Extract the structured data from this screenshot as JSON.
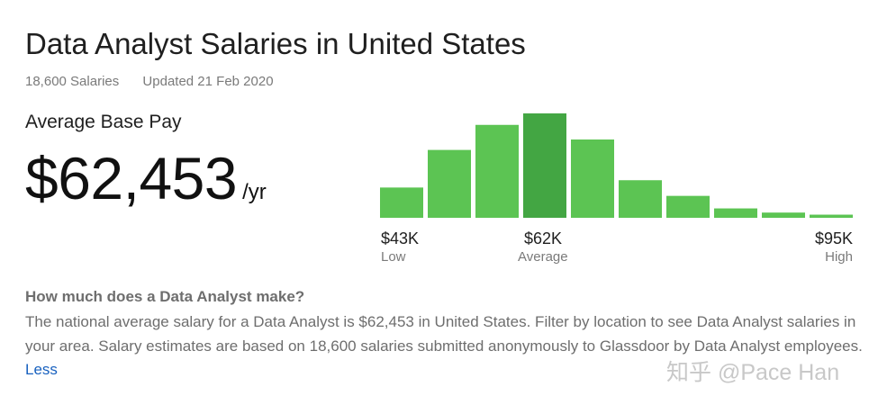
{
  "header": {
    "title": "Data Analyst Salaries in United States",
    "salary_count": "18,600 Salaries",
    "updated": "Updated 21 Feb 2020"
  },
  "pay": {
    "label": "Average Base Pay",
    "amount": "$62,453",
    "unit": "/yr"
  },
  "chart_data": {
    "type": "bar",
    "bin_heights_relative": [
      0.29,
      0.65,
      0.89,
      1.0,
      0.75,
      0.36,
      0.21,
      0.09,
      0.05,
      0.03
    ],
    "highlight_index": 3,
    "colors": {
      "bar": "#5cc453",
      "highlight": "#43a643"
    },
    "grid": false,
    "axis_markers": [
      {
        "value": "$43K",
        "label": "Low"
      },
      {
        "value": "$62K",
        "label": "Average"
      },
      {
        "value": "$95K",
        "label": "High"
      }
    ]
  },
  "description": {
    "question": "How much does a Data Analyst make?",
    "text": "The national average salary for a Data Analyst is $62,453 in United States. Filter by location to see Data Analyst salaries in your area. Salary estimates are based on 18,600 salaries submitted anonymously to Glassdoor by Data Analyst employees.",
    "less_link": "Less"
  },
  "watermark": "知乎 @Pace Han"
}
